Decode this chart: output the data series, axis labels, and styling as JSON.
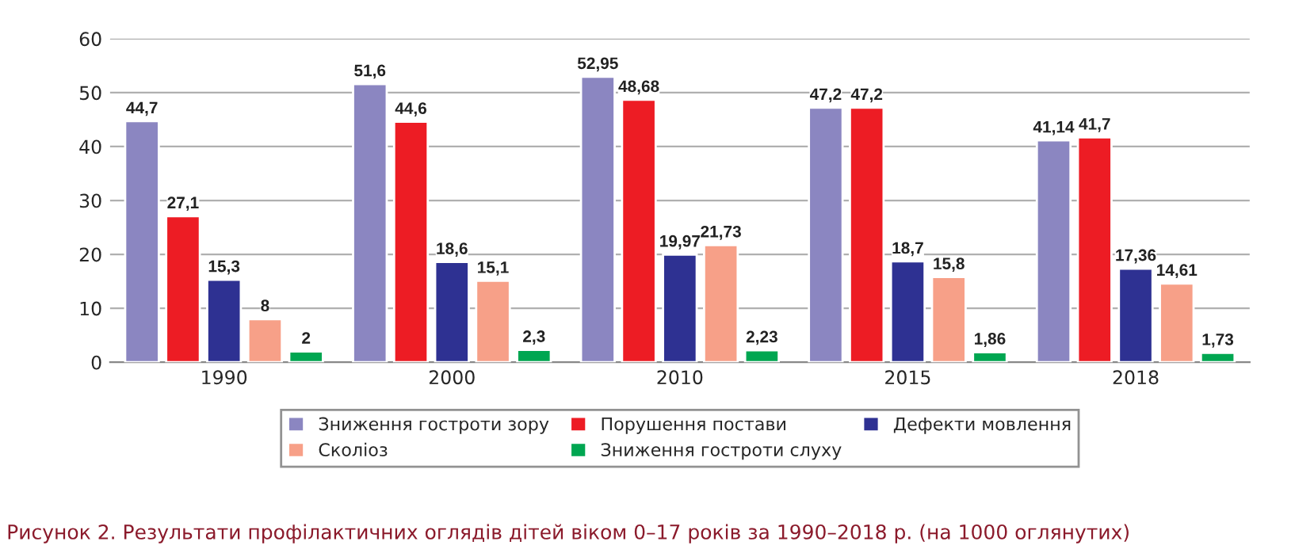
{
  "chart_data": {
    "type": "bar",
    "categories": [
      "1990",
      "2000",
      "2010",
      "2015",
      "2018"
    ],
    "series": [
      {
        "name": "Зниження гостроти зору",
        "color": "#8b86c1",
        "values": [
          44.7,
          51.6,
          52.95,
          47.2,
          41.14
        ],
        "value_labels": [
          "44,7",
          "51,6",
          "52,95",
          "47,2",
          "41,14"
        ]
      },
      {
        "name": "Порушення постави",
        "color": "#ed1c24",
        "values": [
          27.1,
          44.6,
          48.68,
          47.2,
          41.7
        ],
        "value_labels": [
          "27,1",
          "44,6",
          "48,68",
          "47,2",
          "41,7"
        ]
      },
      {
        "name": "Дефекти мовлення",
        "color": "#2e3192",
        "values": [
          15.3,
          18.6,
          19.97,
          18.7,
          17.36
        ],
        "value_labels": [
          "15,3",
          "18,6",
          "19,97",
          "18,7",
          "17,36"
        ]
      },
      {
        "name": "Сколіоз",
        "color": "#f7a088",
        "values": [
          8,
          15.1,
          21.73,
          15.8,
          14.61
        ],
        "value_labels": [
          "8",
          "15,1",
          "21,73",
          "15,8",
          "14,61"
        ]
      },
      {
        "name": "Зниження гостроти слуху",
        "color": "#00a651",
        "values": [
          2,
          2.3,
          2.23,
          1.86,
          1.73
        ],
        "value_labels": [
          "2",
          "2,3",
          "2,23",
          "1,86",
          "1,73"
        ]
      }
    ],
    "ylim": [
      0,
      60
    ],
    "yticks": [
      0,
      10,
      20,
      30,
      40,
      50,
      60
    ],
    "grid": "y",
    "legend": "bottom",
    "annotations": [
      "Рисунок 2. Результати профілактичних оглядів дітей віком 0–17 років за 1990–2018 р. (на 1000 оглянутих)"
    ]
  }
}
